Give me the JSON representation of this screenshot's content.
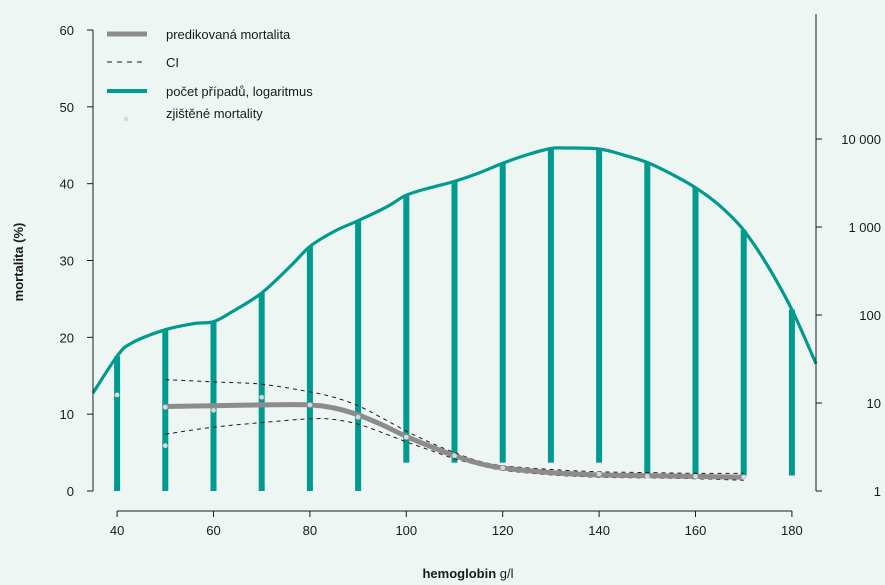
{
  "chart_data": {
    "type": "line",
    "xlabel_bold": "hemoglobin",
    "xlabel_unit": " g/l",
    "ylabel": "mortalita (%)",
    "xlim": [
      35,
      185
    ],
    "ylim": [
      0,
      62
    ],
    "x_ticks": [
      40,
      60,
      80,
      100,
      120,
      140,
      160,
      180
    ],
    "x_tick_labels": [
      "40",
      "60",
      "80",
      "100",
      "120",
      "140",
      "160",
      "180"
    ],
    "y_ticks": [
      0,
      10,
      20,
      30,
      40,
      50,
      60
    ],
    "y_tick_labels": [
      "0",
      "10",
      "20",
      "30",
      "40",
      "50",
      "60"
    ],
    "y2_scale": "log",
    "y2_ticks": [
      1,
      10,
      100,
      1000,
      10000
    ],
    "y2_tick_labels": [
      "1",
      "10",
      "100",
      "1 000",
      "10 000"
    ],
    "legend_position": "top-left",
    "colors": {
      "background": "#eef6f3",
      "teal": "#009a8e",
      "gray": "#8c8c8c",
      "ci": "#1a1a1a",
      "points": "#d8d8d8",
      "axis": "#1a1a1a"
    },
    "series": [
      {
        "name": "predikovaná mortalita",
        "x": [
          50,
          60,
          70,
          80,
          85,
          90,
          95,
          100,
          105,
          110,
          115,
          120,
          130,
          140,
          150,
          160,
          170
        ],
        "y": [
          11.0,
          11.1,
          11.2,
          11.2,
          10.8,
          9.9,
          8.6,
          7.1,
          5.8,
          4.6,
          3.6,
          3.0,
          2.4,
          2.1,
          2.0,
          1.9,
          1.8
        ]
      },
      {
        "name": "CI",
        "upper": {
          "x": [
            50,
            60,
            70,
            80,
            85,
            90,
            95,
            100,
            105,
            110,
            115,
            120,
            130,
            140,
            150,
            160,
            170
          ],
          "y": [
            14.5,
            14.2,
            13.9,
            12.9,
            12.2,
            11.1,
            9.5,
            7.8,
            6.3,
            5.0,
            3.9,
            3.3,
            2.8,
            2.5,
            2.4,
            2.3,
            2.3
          ]
        },
        "lower": {
          "x": [
            50,
            60,
            70,
            80,
            85,
            90,
            95,
            100,
            105,
            110,
            115,
            120,
            130,
            140,
            150,
            160,
            170
          ],
          "y": [
            7.4,
            8.3,
            8.9,
            9.4,
            9.3,
            8.7,
            7.6,
            6.4,
            5.3,
            4.2,
            3.4,
            2.7,
            2.1,
            1.8,
            1.7,
            1.6,
            1.4
          ]
        }
      },
      {
        "name": "počet případů, logaritmus",
        "axis": "y2",
        "curve_x": [
          35,
          40,
          43,
          50,
          56,
          60,
          64,
          70,
          76,
          80,
          85,
          90,
          96,
          100,
          105,
          110,
          115,
          120,
          125,
          130,
          133,
          140,
          145,
          150,
          155,
          160,
          165,
          170,
          175,
          180,
          185
        ],
        "curve_y": [
          13,
          34,
          48,
          68,
          80,
          84,
          110,
          178,
          360,
          600,
          890,
          1180,
          1700,
          2300,
          2800,
          3300,
          4100,
          5300,
          6600,
          7800,
          7900,
          7700,
          6600,
          5400,
          4000,
          2800,
          1750,
          920,
          360,
          115,
          28
        ],
        "bar_x": [
          40,
          50,
          60,
          70,
          80,
          90,
          100,
          110,
          120,
          130,
          140,
          150,
          160,
          170,
          180
        ],
        "bar_y": [
          34,
          68,
          84,
          178,
          600,
          1180,
          2300,
          3300,
          5300,
          7800,
          7700,
          5400,
          2800,
          920,
          115
        ],
        "bar_base": [
          1,
          1,
          1,
          1,
          1,
          1,
          2.1,
          2.1,
          2.1,
          2.1,
          2.1,
          1.5,
          1.5,
          1.5,
          1.5
        ]
      },
      {
        "name": "zjištěné mortality",
        "x": [
          40,
          50,
          50,
          60,
          70,
          80,
          90,
          100,
          110,
          120,
          140,
          150,
          160,
          170
        ],
        "y": [
          12.5,
          5.9,
          10.9,
          10.5,
          12.2,
          11.2,
          9.6,
          7.0,
          4.6,
          3.0,
          2.2,
          1.9,
          1.9,
          1.8
        ]
      }
    ]
  }
}
